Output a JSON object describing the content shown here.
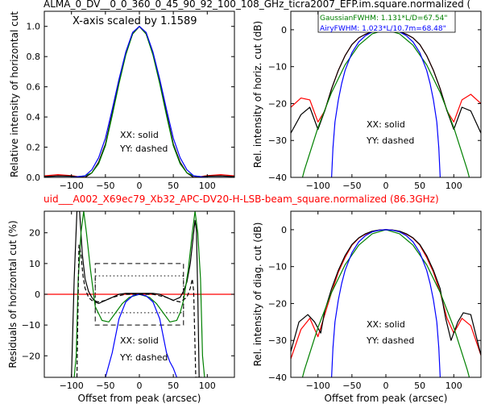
{
  "figure": {
    "title_top": "ALMA_0_DV__0_0_360_0_45_90_92_100_108_GHz_ticra2007_EFP.im.square.normalized (",
    "title_mid": "uid___A002_X69ec79_Xb32_APC-DV20-H-LSB-beam_square.normalized (86.3GHz)",
    "title_mid_color": "#ff0000"
  },
  "chart_data": [
    {
      "id": "ax1",
      "type": "line",
      "ylabel": "Relative intensity of horizontal cut",
      "xlabel": "",
      "xlim": [
        -140,
        140
      ],
      "ylim": [
        0,
        1.1
      ],
      "xticks": [
        "−100",
        "−50",
        "0",
        "50",
        "100"
      ],
      "yticks": [
        "0.0",
        "0.2",
        "0.4",
        "0.6",
        "0.8",
        "1.0"
      ],
      "annotations": [
        "X-axis scaled by 1.1589",
        "XX: solid",
        "YY: dashed"
      ],
      "series": [
        {
          "color": "#ff0000",
          "x": [
            -140,
            -120,
            -100,
            -90,
            -80,
            -70,
            -60,
            -50,
            -40,
            -30,
            -20,
            -10,
            0,
            10,
            20,
            30,
            40,
            50,
            60,
            70,
            80,
            90,
            100,
            120,
            140
          ],
          "y": [
            0.01,
            0.018,
            0.012,
            0.005,
            0.0,
            0.03,
            0.1,
            0.22,
            0.42,
            0.63,
            0.82,
            0.95,
            1.0,
            0.95,
            0.82,
            0.63,
            0.42,
            0.22,
            0.1,
            0.03,
            0.0,
            0.005,
            0.012,
            0.018,
            0.01
          ]
        },
        {
          "color": "#000000",
          "x": [
            -140,
            -120,
            -100,
            -90,
            -80,
            -70,
            -60,
            -50,
            -40,
            -30,
            -20,
            -10,
            0,
            10,
            20,
            30,
            40,
            50,
            60,
            70,
            80,
            90,
            100,
            120,
            140
          ],
          "y": [
            0.005,
            0.01,
            0.008,
            0.004,
            0.0,
            0.03,
            0.1,
            0.22,
            0.42,
            0.63,
            0.82,
            0.95,
            1.0,
            0.95,
            0.82,
            0.63,
            0.42,
            0.22,
            0.1,
            0.03,
            0.0,
            0.004,
            0.008,
            0.01,
            0.005
          ]
        },
        {
          "color": "#008000",
          "x": [
            -140,
            -100,
            -80,
            -70,
            -60,
            -50,
            -40,
            -30,
            -20,
            -10,
            0,
            10,
            20,
            30,
            40,
            50,
            60,
            70,
            80,
            100,
            140
          ],
          "y": [
            0,
            0.0,
            0.01,
            0.03,
            0.09,
            0.21,
            0.41,
            0.62,
            0.81,
            0.95,
            1.0,
            0.95,
            0.81,
            0.62,
            0.41,
            0.21,
            0.09,
            0.03,
            0.01,
            0.0,
            0
          ]
        },
        {
          "color": "#0000ff",
          "x": [
            -140,
            -100,
            -80,
            -70,
            -60,
            -50,
            -40,
            -30,
            -20,
            -10,
            0,
            10,
            20,
            30,
            40,
            50,
            60,
            70,
            80,
            100,
            140
          ],
          "y": [
            0,
            0.0,
            0.01,
            0.05,
            0.13,
            0.26,
            0.45,
            0.65,
            0.83,
            0.96,
            1.0,
            0.96,
            0.83,
            0.65,
            0.45,
            0.26,
            0.13,
            0.05,
            0.01,
            0.0,
            0
          ]
        }
      ]
    },
    {
      "id": "ax2",
      "type": "line",
      "ylabel": "Rel. intensity of horiz. cut (dB)",
      "xlabel": "",
      "xlim": [
        -140,
        140
      ],
      "ylim": [
        -40,
        5
      ],
      "xticks": [
        "−100",
        "−50",
        "0",
        "50",
        "100"
      ],
      "yticks": [
        "0",
        "−10",
        "−20",
        "−30",
        "−40"
      ],
      "legend": [
        {
          "text": "GaussianFWHM: 1.131*L/D=67.54\"",
          "color": "#008000"
        },
        {
          "text": "AiryFWHM: 1.023*L/10.7m=68.48\"",
          "color": "#0000ff"
        }
      ],
      "annotations": [
        "XX: solid",
        "YY: dashed"
      ],
      "series": [
        {
          "color": "#ff0000",
          "x": [
            -140,
            -125,
            -112,
            -100,
            -90,
            -80,
            -70,
            -60,
            -50,
            -40,
            -30,
            -20,
            -10,
            0,
            10,
            20,
            30,
            40,
            50,
            60,
            70,
            80,
            90,
            100,
            112,
            125,
            140
          ],
          "y": [
            -21,
            -18.5,
            -19,
            -25,
            -22,
            -16,
            -11,
            -7,
            -4,
            -2.2,
            -1.2,
            -0.5,
            -0.1,
            0,
            -0.1,
            -0.5,
            -1.2,
            -2.2,
            -4,
            -7,
            -11,
            -16,
            -22,
            -25,
            -19,
            -17.5,
            -20
          ]
        },
        {
          "color": "#000000",
          "x": [
            -140,
            -125,
            -112,
            -100,
            -90,
            -80,
            -70,
            -60,
            -50,
            -40,
            -30,
            -20,
            -10,
            0,
            10,
            20,
            30,
            40,
            50,
            60,
            70,
            80,
            90,
            100,
            112,
            125,
            140
          ],
          "y": [
            -28,
            -23,
            -21,
            -27,
            -22,
            -16,
            -11,
            -7,
            -4,
            -2.2,
            -1.2,
            -0.5,
            -0.1,
            0,
            -0.1,
            -0.5,
            -1.2,
            -2.2,
            -4,
            -7,
            -11,
            -16,
            -22,
            -27,
            -21,
            -22,
            -28
          ]
        },
        {
          "color": "#008000",
          "x": [
            -140,
            -120,
            -100,
            -80,
            -60,
            -40,
            -20,
            0,
            20,
            40,
            60,
            80,
            100,
            120,
            140
          ],
          "y": [
            -52,
            -38,
            -26.5,
            -17,
            -9.5,
            -4.2,
            -1.1,
            0,
            -1.1,
            -4.2,
            -9.5,
            -17,
            -26.5,
            -38,
            -52
          ]
        },
        {
          "color": "#0000ff",
          "x": [
            -80,
            -78,
            -75,
            -70,
            -65,
            -60,
            -50,
            -40,
            -30,
            -20,
            -10,
            0,
            10,
            20,
            30,
            40,
            50,
            60,
            65,
            70,
            75,
            78,
            80
          ],
          "y": [
            -40,
            -32,
            -25,
            -19,
            -14.5,
            -11,
            -6.2,
            -3.3,
            -1.6,
            -0.6,
            -0.15,
            0,
            -0.15,
            -0.6,
            -1.6,
            -3.3,
            -6.2,
            -11,
            -14.5,
            -19,
            -25,
            -32,
            -40
          ]
        }
      ]
    },
    {
      "id": "ax3",
      "type": "line",
      "ylabel": "Residuals of horizontal cut (%)",
      "xlabel": "Offset from peak (arcsec)",
      "xlim": [
        -140,
        140
      ],
      "ylim": [
        -27,
        27
      ],
      "xticks": [
        "−100",
        "−50",
        "0",
        "50",
        "100"
      ],
      "yticks": [
        "20",
        "10",
        "0",
        "−10",
        "−20"
      ],
      "annotations": [
        "XX: solid",
        "YY: dashed"
      ],
      "boxes": [
        {
          "x": [
            -65,
            65
          ],
          "y": [
            -10,
            10
          ],
          "style": "dashed"
        },
        {
          "x": [
            -65,
            65
          ],
          "y": [
            -6,
            6
          ],
          "style": "dotted"
        }
      ],
      "series": [
        {
          "color": "#ff0000",
          "x": [
            -140,
            140
          ],
          "y": [
            0,
            0
          ]
        },
        {
          "color": "#000000",
          "x": [
            -100,
            -96,
            -92,
            -88,
            -84,
            -80,
            -75,
            -70,
            -65,
            -60,
            -50,
            -40,
            -30,
            -20,
            -10,
            0,
            10,
            20,
            30,
            40,
            50,
            60,
            65,
            70,
            75,
            78,
            80,
            82,
            84,
            86,
            88,
            92
          ],
          "y": [
            -27,
            5,
            27,
            27,
            13,
            5,
            1,
            -1,
            -2.5,
            -3,
            -2,
            -1,
            0,
            0.3,
            0.3,
            0.3,
            0.3,
            0.3,
            0,
            -1,
            -2,
            -1,
            1,
            4,
            10,
            16,
            20,
            24,
            21,
            0,
            -27,
            -27
          ]
        },
        {
          "color": "#008000",
          "x": [
            -96,
            -93,
            -90,
            -86,
            -82,
            -78,
            -72,
            -65,
            -55,
            -45,
            -35,
            -25,
            -15,
            0,
            15,
            25,
            35,
            45,
            55,
            60,
            65,
            72,
            78,
            82,
            86,
            90,
            93,
            96
          ],
          "y": [
            -27,
            -20,
            5,
            20,
            27,
            20,
            8,
            -4,
            -8.5,
            -9,
            -6,
            -3,
            -1,
            0,
            -1,
            -3,
            -6,
            -9,
            -8.5,
            -6,
            -2,
            8,
            20,
            27,
            20,
            5,
            -20,
            -27
          ]
        },
        {
          "color": "#0000ff",
          "x": [
            -50,
            -40,
            -30,
            -20,
            -10,
            0,
            10,
            20,
            30,
            40,
            45,
            50,
            55
          ],
          "y": [
            -27,
            -19,
            -8,
            -2.5,
            -0.5,
            0,
            -0.5,
            -2.5,
            -8,
            -19,
            -22,
            -24,
            -27
          ]
        },
        {
          "color": "#000000",
          "style": "dashed",
          "x": [
            -92,
            -89,
            -86,
            -83,
            -80,
            -75,
            -70,
            -60,
            -50,
            -40,
            -20,
            0,
            20,
            40,
            50,
            60,
            70,
            75,
            78,
            80,
            83,
            86,
            89
          ],
          "y": [
            -27,
            16,
            13,
            6,
            2,
            -1,
            -2,
            -2.5,
            -2,
            -1,
            0,
            0,
            0,
            -1,
            -2,
            -2.5,
            -1,
            2,
            5,
            1,
            -27,
            -27,
            -27
          ]
        }
      ]
    },
    {
      "id": "ax4",
      "type": "line",
      "ylabel": "Rel. intensity of diag. cut (dB)",
      "xlabel": "Offset from peak (arcsec)",
      "xlim": [
        -140,
        140
      ],
      "ylim": [
        -40,
        5
      ],
      "xticks": [
        "−100",
        "−50",
        "0",
        "50",
        "100"
      ],
      "yticks": [
        "0",
        "−10",
        "−20",
        "−30",
        "−40"
      ],
      "annotations": [
        "XX: solid",
        "YY: dashed"
      ],
      "series": [
        {
          "color": "#ff0000",
          "x": [
            -140,
            -125,
            -112,
            -100,
            -90,
            -80,
            -70,
            -60,
            -50,
            -40,
            -30,
            -20,
            -10,
            0,
            10,
            20,
            30,
            40,
            50,
            60,
            70,
            80,
            90,
            100,
            112,
            125,
            140
          ],
          "y": [
            -35,
            -27,
            -24,
            -29,
            -23,
            -17,
            -11.5,
            -7.5,
            -4.2,
            -2.3,
            -1.2,
            -0.5,
            -0.1,
            0,
            -0.1,
            -0.5,
            -1.2,
            -2.3,
            -4.2,
            -7.5,
            -11.5,
            -17,
            -24,
            -28,
            -24,
            -26,
            -34
          ]
        },
        {
          "color": "#000000",
          "x": [
            -140,
            -128,
            -115,
            -105,
            -96,
            -90,
            -80,
            -70,
            -60,
            -50,
            -40,
            -30,
            -20,
            -10,
            0,
            10,
            20,
            30,
            40,
            50,
            60,
            70,
            80,
            88,
            96,
            106,
            114,
            125,
            140
          ],
          "y": [
            -33,
            -25,
            -23,
            -25,
            -28,
            -22,
            -16,
            -11,
            -7,
            -4,
            -2.2,
            -1.1,
            -0.4,
            -0.1,
            0,
            -0.1,
            -0.4,
            -1.1,
            -2.2,
            -4,
            -7,
            -11,
            -16,
            -24,
            -30,
            -25,
            -22.5,
            -23,
            -34
          ]
        },
        {
          "color": "#008000",
          "x": [
            -140,
            -120,
            -100,
            -80,
            -60,
            -40,
            -20,
            0,
            20,
            40,
            60,
            80,
            100,
            120,
            140
          ],
          "y": [
            -52,
            -38,
            -26.5,
            -17,
            -9.5,
            -4.2,
            -1.1,
            0,
            -1.1,
            -4.2,
            -9.5,
            -17,
            -26.5,
            -38,
            -52
          ]
        },
        {
          "color": "#0000ff",
          "x": [
            -80,
            -78,
            -75,
            -70,
            -65,
            -60,
            -50,
            -40,
            -30,
            -20,
            -10,
            0,
            10,
            20,
            30,
            40,
            50,
            60,
            65,
            70,
            75,
            78,
            80
          ],
          "y": [
            -40,
            -32,
            -25,
            -19,
            -14.5,
            -11,
            -6.2,
            -3.3,
            -1.6,
            -0.6,
            -0.15,
            0,
            -0.15,
            -0.6,
            -1.6,
            -3.3,
            -6.2,
            -11,
            -14.5,
            -19,
            -25,
            -32,
            -40
          ]
        }
      ]
    }
  ]
}
